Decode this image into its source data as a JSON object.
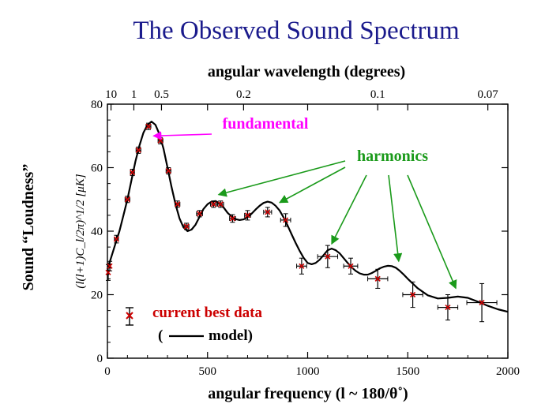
{
  "slide": {
    "title": "The Observed Sound Spectrum",
    "title_color": "#1a1a8c"
  },
  "chart_data": {
    "type": "scatter",
    "title": "The Observed Sound Spectrum",
    "xlabel": "angular frequency (l ~ 180/θ˚)",
    "ylabel_outer": "Sound “Loudness”",
    "ylabel_inner": "(l(l+1)C_l/2π)^1/2 [μK]",
    "top_axis_label": "angular wavelength (degrees)",
    "xlim": [
      0,
      2000
    ],
    "ylim": [
      0,
      80
    ],
    "x_ticks": [
      0,
      500,
      1000,
      1500,
      2000
    ],
    "y_ticks": [
      0,
      20,
      40,
      60,
      80
    ],
    "top_ticks": [
      {
        "label": "10",
        "l": 18
      },
      {
        "label": "1",
        "l": 132
      },
      {
        "label": "0.5",
        "l": 270
      },
      {
        "label": "0.2",
        "l": 680
      },
      {
        "label": "0.1",
        "l": 1350
      },
      {
        "label": "0.07",
        "l": 1900
      }
    ],
    "model": {
      "name": "model",
      "color": "#000000",
      "x": [
        0,
        10,
        20,
        40,
        60,
        80,
        100,
        120,
        140,
        160,
        180,
        200,
        220,
        240,
        260,
        280,
        300,
        320,
        340,
        360,
        380,
        400,
        420,
        440,
        460,
        480,
        500,
        520,
        540,
        560,
        580,
        600,
        620,
        640,
        660,
        680,
        700,
        720,
        740,
        760,
        780,
        800,
        820,
        840,
        860,
        880,
        900,
        920,
        940,
        960,
        980,
        1000,
        1020,
        1040,
        1060,
        1080,
        1100,
        1120,
        1140,
        1160,
        1180,
        1200,
        1220,
        1240,
        1260,
        1280,
        1300,
        1320,
        1340,
        1360,
        1380,
        1400,
        1420,
        1440,
        1460,
        1480,
        1500,
        1550,
        1600,
        1650,
        1700,
        1750,
        1800,
        1850,
        1900,
        1950,
        2000
      ],
      "y": [
        28,
        30,
        32,
        36,
        40,
        45,
        50,
        56,
        62,
        67,
        71,
        73.5,
        74.5,
        73.5,
        70.5,
        66,
        60,
        54,
        48.5,
        44,
        41.2,
        40,
        40.5,
        42,
        44.5,
        47,
        48.5,
        49.3,
        49.5,
        48.8,
        47.5,
        45.8,
        44.6,
        43.8,
        43.5,
        43.7,
        44.4,
        45.5,
        46.8,
        48,
        48.9,
        49.3,
        49,
        48,
        46.5,
        44.3,
        41.8,
        39,
        36.3,
        33.8,
        31.6,
        30,
        29.6,
        30,
        31,
        32.5,
        34,
        34.5,
        34,
        33,
        31.5,
        30,
        28.6,
        27.5,
        26.7,
        26.3,
        26.3,
        26.8,
        27.5,
        28.3,
        28.8,
        29.1,
        29,
        28.5,
        27.5,
        26.3,
        25,
        22,
        19.8,
        18.8,
        19,
        19.4,
        19,
        17.8,
        16.5,
        15.4,
        14.6
      ]
    },
    "series": [
      {
        "name": "current best data",
        "color": "#cc0000",
        "points": [
          {
            "x": 4,
            "y": 27,
            "xerr": 3,
            "yerr": 2.5
          },
          {
            "x": 12,
            "y": 29,
            "xerr": 4,
            "yerr": 1.5
          },
          {
            "x": 45,
            "y": 37.5,
            "xerr": 10,
            "yerr": 1.2
          },
          {
            "x": 100,
            "y": 50,
            "xerr": 12,
            "yerr": 1
          },
          {
            "x": 125,
            "y": 58.5,
            "xerr": 10,
            "yerr": 1
          },
          {
            "x": 155,
            "y": 65.5,
            "xerr": 12,
            "yerr": 1
          },
          {
            "x": 205,
            "y": 73,
            "xerr": 12,
            "yerr": 1
          },
          {
            "x": 265,
            "y": 68.5,
            "xerr": 12,
            "yerr": 1
          },
          {
            "x": 305,
            "y": 59,
            "xerr": 12,
            "yerr": 1
          },
          {
            "x": 350,
            "y": 48.5,
            "xerr": 12,
            "yerr": 1
          },
          {
            "x": 395,
            "y": 41.5,
            "xerr": 12,
            "yerr": 1
          },
          {
            "x": 460,
            "y": 45.5,
            "xerr": 15,
            "yerr": 1
          },
          {
            "x": 530,
            "y": 48.5,
            "xerr": 15,
            "yerr": 1
          },
          {
            "x": 565,
            "y": 48.5,
            "xerr": 15,
            "yerr": 1
          },
          {
            "x": 625,
            "y": 44,
            "xerr": 15,
            "yerr": 1.2
          },
          {
            "x": 700,
            "y": 45,
            "xerr": 15,
            "yerr": 1.5
          },
          {
            "x": 800,
            "y": 46,
            "xerr": 20,
            "yerr": 1.5
          },
          {
            "x": 890,
            "y": 43.5,
            "xerr": 25,
            "yerr": 2
          },
          {
            "x": 970,
            "y": 29,
            "xerr": 25,
            "yerr": 2.5
          },
          {
            "x": 1100,
            "y": 32,
            "xerr": 50,
            "yerr": 3.5
          },
          {
            "x": 1215,
            "y": 29,
            "xerr": 35,
            "yerr": 2.5
          },
          {
            "x": 1350,
            "y": 25,
            "xerr": 50,
            "yerr": 3
          },
          {
            "x": 1525,
            "y": 20,
            "xerr": 50,
            "yerr": 4
          },
          {
            "x": 1700,
            "y": 16,
            "xerr": 50,
            "yerr": 4
          },
          {
            "x": 1870,
            "y": 17.5,
            "xerr": 75,
            "yerr": 6
          }
        ]
      }
    ],
    "annotations": [
      {
        "text": "fundamental",
        "color": "#ff00ff",
        "target": {
          "x": 230,
          "y": 70
        }
      },
      {
        "text": "harmonics",
        "color": "#1a9a1a",
        "targets": [
          {
            "x": 555,
            "y": 51.5
          },
          {
            "x": 860,
            "y": 49
          },
          {
            "x": 1120,
            "y": 36
          },
          {
            "x": 1455,
            "y": 30.5
          },
          {
            "x": 1740,
            "y": 22
          }
        ]
      }
    ],
    "legend": {
      "data_label": "current best data",
      "data_color": "#cc0000",
      "model_open": "(",
      "model_label": "model)",
      "placement": "bottom-left"
    },
    "grid": false
  }
}
